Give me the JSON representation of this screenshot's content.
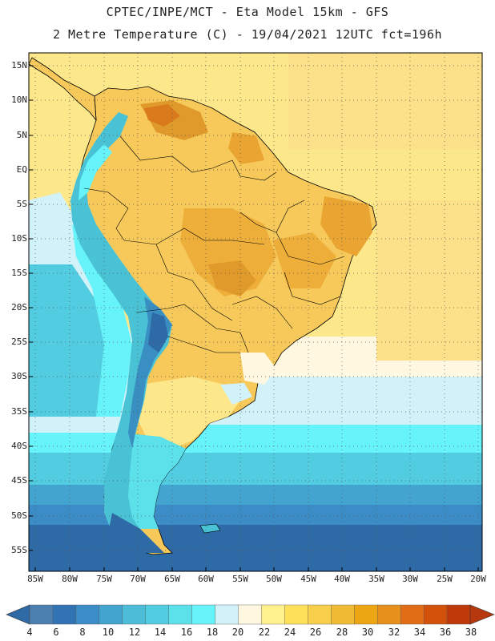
{
  "header": {
    "line1": "CPTEC/INPE/MCT -  Eta Model 15km - GFS",
    "line2": "2 Metre Temperature (C) - 19/04/2021 12UTC fct=196h"
  },
  "axes": {
    "lat_labels": [
      "15N",
      "10N",
      "5N",
      "EQ",
      "5S",
      "10S",
      "15S",
      "20S",
      "25S",
      "30S",
      "35S",
      "40S",
      "45S",
      "50S",
      "55S"
    ],
    "lon_labels": [
      "85W",
      "80W",
      "75W",
      "70W",
      "65W",
      "60W",
      "55W",
      "50W",
      "45W",
      "40W",
      "35W",
      "30W",
      "25W",
      "20W"
    ]
  },
  "colorbar": {
    "levels": [
      "4",
      "6",
      "8",
      "10",
      "12",
      "14",
      "16",
      "18",
      "20",
      "22",
      "24",
      "26",
      "28",
      "30",
      "32",
      "34",
      "36",
      "38"
    ],
    "colors": [
      "#4a7fb0",
      "#3273b4",
      "#3c8cc8",
      "#44a4d0",
      "#4cbcd8",
      "#52cce0",
      "#5ce0ea",
      "#66f4fa",
      "#d2f2fa",
      "#fff7e0",
      "#fff28c",
      "#ffe05a",
      "#f8cf4a",
      "#f0bb34",
      "#eca614",
      "#e6901c",
      "#e06e16",
      "#d2520c",
      "#be3a0a"
    ],
    "below_color": "#2e6aa6",
    "above_color": "#b8380e"
  },
  "map": {
    "ocean_color": "#fce78a",
    "land_color": "#f6c95a",
    "hot_color": "#e9a431",
    "very_hot_color": "#de8522",
    "andes_color": "#4ac2d6",
    "andes_high_color": "#3a8fc2",
    "cold_ocean_color": "#4cbcd8",
    "cold_south_color": "#2e6aa6",
    "coast_color": "#000000"
  }
}
